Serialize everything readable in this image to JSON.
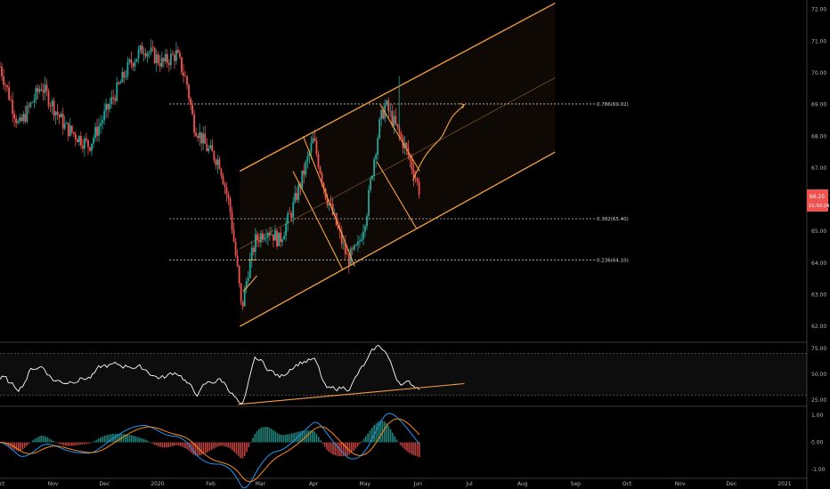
{
  "colors": {
    "background": "#000000",
    "candle_up": "#26a69a",
    "candle_down": "#ef5350",
    "channel": "#f5a142",
    "rsi_line": "#ffffff",
    "macd_line": "#2196f3",
    "signal_line": "#ff8c1a",
    "price_tag": "#ef5350",
    "axis_text": "#b2b5be",
    "fib_line": "#c8c8c8"
  },
  "chart_data": [
    {
      "type": "candlestick",
      "panel": "price",
      "x_tick_labels": [
        "Oct",
        "Nov",
        "Dec",
        "2020",
        "Feb",
        "Mar",
        "Apr",
        "May",
        "Jun",
        "Jul",
        "Aug",
        "Sep",
        "Oct",
        "Nov",
        "Dec",
        "2021"
      ],
      "x_tick_dates": [
        "2019-10-01",
        "2019-11-01",
        "2019-12-01",
        "2020-01-01",
        "2020-02-01",
        "2020-03-01",
        "2020-04-01",
        "2020-05-01",
        "2020-06-01",
        "2020-07-01",
        "2020-08-01",
        "2020-09-01",
        "2020-10-01",
        "2020-11-01",
        "2020-12-01",
        "2021-01-01"
      ],
      "y_tick_labels": [
        "72.00",
        "71.00",
        "70.00",
        "69.00",
        "68.00",
        "67.00",
        "66.00",
        "65.00",
        "64.00",
        "63.00",
        "62.00"
      ],
      "ylim": [
        61.5,
        72.3
      ],
      "path_points": [
        {
          "date": "2019-10-01",
          "close": 70.2
        },
        {
          "date": "2019-10-12",
          "close": 68.3
        },
        {
          "date": "2019-10-25",
          "close": 69.6
        },
        {
          "date": "2019-11-08",
          "close": 68.3
        },
        {
          "date": "2019-11-22",
          "close": 67.7
        },
        {
          "date": "2019-12-05",
          "close": 69.1
        },
        {
          "date": "2019-12-16",
          "close": 70.3
        },
        {
          "date": "2019-12-24",
          "close": 70.8
        },
        {
          "date": "2020-01-04",
          "close": 70.3
        },
        {
          "date": "2020-01-12",
          "close": 70.6
        },
        {
          "date": "2020-01-18",
          "close": 69.7
        },
        {
          "date": "2020-01-22",
          "close": 68.4
        },
        {
          "date": "2020-01-30",
          "close": 67.6
        },
        {
          "date": "2020-02-06",
          "close": 67.2
        },
        {
          "date": "2020-02-12",
          "close": 65.8
        },
        {
          "date": "2020-02-17",
          "close": 63.6
        },
        {
          "date": "2020-02-19",
          "close": 62.5
        },
        {
          "date": "2020-02-23",
          "close": 63.8
        },
        {
          "date": "2020-02-27",
          "close": 64.7
        },
        {
          "date": "2020-03-05",
          "close": 65.1
        },
        {
          "date": "2020-03-12",
          "close": 64.7
        },
        {
          "date": "2020-03-19",
          "close": 65.6
        },
        {
          "date": "2020-03-26",
          "close": 66.8
        },
        {
          "date": "2020-04-01",
          "close": 67.9
        },
        {
          "date": "2020-04-08",
          "close": 66.2
        },
        {
          "date": "2020-04-15",
          "close": 65.1
        },
        {
          "date": "2020-04-21",
          "close": 64.1
        },
        {
          "date": "2020-04-27",
          "close": 64.5
        },
        {
          "date": "2020-05-02",
          "close": 65.6
        },
        {
          "date": "2020-05-06",
          "close": 67.2
        },
        {
          "date": "2020-05-10",
          "close": 68.5
        },
        {
          "date": "2020-05-13",
          "close": 69.0
        },
        {
          "date": "2020-05-19",
          "close": 68.3
        },
        {
          "date": "2020-05-25",
          "close": 67.6
        },
        {
          "date": "2020-05-30",
          "close": 66.8
        },
        {
          "date": "2020-06-02",
          "close": 66.25
        }
      ],
      "fib_levels": [
        {
          "label": "0.786(69.02)",
          "value": 69.02
        },
        {
          "label": "0.382(65.40)",
          "value": 65.4
        },
        {
          "label": "0.236(64.10)",
          "value": 64.1
        }
      ],
      "last_price_label": "66.25",
      "countdown_label": "21:50:24",
      "channel": {
        "start_date": "2020-02-18",
        "end_date": "2020-08-20",
        "upper": [
          66.9,
          72.2
        ],
        "lower": [
          62.0,
          67.5
        ]
      }
    },
    {
      "type": "line",
      "panel": "rsi",
      "y_tick_labels": [
        "75.00",
        "50.00",
        "25.00"
      ],
      "ylim": [
        20,
        80
      ],
      "bands": [
        70,
        30
      ],
      "trendline": {
        "start": [
          "2020-02-17",
          21
        ],
        "end": [
          "2020-06-28",
          41
        ]
      }
    },
    {
      "type": "bar+line",
      "panel": "macd",
      "y_tick_labels": [
        "1.00",
        "0.00",
        "-1.00"
      ],
      "ylim": [
        -1.3,
        1.3
      ],
      "series": [
        {
          "values_key": "macd"
        },
        {
          "values_key": "signal"
        },
        {
          "values_key": "histogram"
        }
      ]
    }
  ]
}
